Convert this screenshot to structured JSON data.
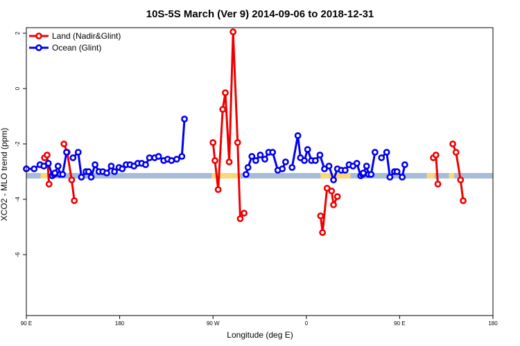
{
  "chart_data": {
    "type": "line",
    "title": "10S-5S March (Ver 9)   2014-09-06 to 2018-12-31",
    "xlabel": "Longitude (deg E)",
    "ylabel": "XCO2 - MLO trend (ppm)",
    "xlim": [
      90,
      450
    ],
    "ylim": [
      -8.2,
      2.2
    ],
    "x_ticks": [
      {
        "value": 90,
        "label": "90 E"
      },
      {
        "value": 162,
        "label": "180"
      },
      {
        "value": 234,
        "label": "90 W"
      },
      {
        "value": 306,
        "label": "0"
      },
      {
        "value": 378,
        "label": "90 E"
      },
      {
        "value": 450,
        "label": "180"
      }
    ],
    "y_ticks": [
      {
        "value": 2,
        "label": "2"
      },
      {
        "value": 0,
        "label": "0"
      },
      {
        "value": -2,
        "label": "-2"
      },
      {
        "value": -4,
        "label": "-4"
      },
      {
        "value": -6,
        "label": "-6"
      }
    ],
    "grid": false,
    "legend_position": "top-left",
    "band": {
      "y_top": -3.05,
      "y_bottom": -3.25,
      "color": "#a7bcd9",
      "highlight_color": "#fad77a",
      "highlights": [
        [
          101,
          113
        ],
        [
          233,
          255
        ],
        [
          317,
          340
        ],
        [
          399,
          405
        ],
        [
          416,
          420
        ]
      ]
    },
    "series": [
      {
        "name": "Land (Nadir&Glint)",
        "color": "#ee0000",
        "segments": [
          [
            [
              104,
              -2.5
            ],
            [
              106,
              -2.4
            ],
            [
              107.5,
              -3.45
            ]
          ],
          [
            [
              119,
              -2.0
            ],
            [
              121.5,
              -2.3
            ],
            [
              125,
              -3.3
            ],
            [
              127,
              -4.05
            ]
          ],
          [
            [
              234,
              -1.95
            ],
            [
              235.5,
              -2.6
            ],
            [
              238,
              -3.65
            ],
            [
              241.5,
              -0.75
            ],
            [
              243.5,
              -0.15
            ],
            [
              246.5,
              -2.65
            ],
            [
              249.5,
              2.05
            ],
            [
              253,
              -1.95
            ],
            [
              255,
              -4.7
            ],
            [
              258,
              -4.5
            ]
          ],
          [
            [
              317,
              -4.6
            ],
            [
              318.5,
              -5.2
            ],
            [
              322,
              -3.6
            ],
            [
              325.5,
              -3.7
            ],
            [
              327,
              -4.2
            ],
            [
              330,
              -3.9
            ]
          ],
          [
            [
              404,
              -2.5
            ],
            [
              406,
              -2.4
            ],
            [
              407.5,
              -3.45
            ]
          ],
          [
            [
              419,
              -2.0
            ],
            [
              421.5,
              -2.3
            ],
            [
              425,
              -3.3
            ],
            [
              427,
              -4.05
            ]
          ]
        ]
      },
      {
        "name": "Ocean (Glint)",
        "color": "#0000ee",
        "segments": [
          [
            [
              90,
              -2.9
            ],
            [
              96,
              -2.9
            ],
            [
              100.5,
              -2.75
            ],
            [
              103.5,
              -2.8
            ],
            [
              107,
              -2.7
            ],
            [
              110,
              -3.15
            ],
            [
              111.5,
              -3.1
            ]
          ],
          [
            [
              112,
              -3.05
            ],
            [
              114.5,
              -2.8
            ],
            [
              116,
              -3.1
            ],
            [
              118,
              -3.1
            ],
            [
              121,
              -2.3
            ]
          ],
          [
            [
              126,
              -2.5
            ],
            [
              130,
              -2.3
            ],
            [
              132.5,
              -3.2
            ],
            [
              136,
              -3.0
            ],
            [
              138,
              -3.0
            ],
            [
              140,
              -3.2
            ],
            [
              143,
              -2.75
            ],
            [
              146,
              -3.0
            ],
            [
              149,
              -3.0
            ],
            [
              152,
              -3.05
            ],
            [
              155.5,
              -2.8
            ],
            [
              158,
              -3.0
            ],
            [
              161.5,
              -2.85
            ],
            [
              164,
              -2.9
            ],
            [
              167,
              -2.75
            ],
            [
              170,
              -2.75
            ],
            [
              173,
              -2.8
            ],
            [
              176,
              -2.7
            ],
            [
              179,
              -2.7
            ],
            [
              182,
              -2.75
            ],
            [
              185,
              -2.5
            ],
            [
              189,
              -2.5
            ],
            [
              192,
              -2.45
            ],
            [
              196,
              -2.6
            ],
            [
              199,
              -2.55
            ],
            [
              202,
              -2.6
            ],
            [
              206,
              -2.55
            ],
            [
              210,
              -2.45
            ],
            [
              212,
              -1.1
            ]
          ],
          [
            [
              259.5,
              -3.1
            ],
            [
              261,
              -2.85
            ],
            [
              264,
              -2.45
            ],
            [
              267,
              -2.6
            ],
            [
              270.5,
              -2.4
            ],
            [
              274,
              -2.55
            ],
            [
              277,
              -2.3
            ],
            [
              280,
              -2.3
            ],
            [
              284,
              -2.95
            ],
            [
              287.5,
              -2.9
            ],
            [
              290,
              -2.65
            ]
          ],
          [
            [
              295,
              -2.85
            ],
            [
              299.5,
              -1.7
            ],
            [
              301.5,
              -2.5
            ],
            [
              304.5,
              -2.6
            ],
            [
              307,
              -2.2
            ],
            [
              310,
              -2.6
            ],
            [
              313,
              -2.6
            ],
            [
              316.5,
              -2.4
            ],
            [
              320,
              -2.9
            ],
            [
              323.5,
              -2.8
            ],
            [
              327,
              -3.3
            ],
            [
              330,
              -2.9
            ],
            [
              333,
              -2.95
            ],
            [
              336,
              -2.95
            ],
            [
              339,
              -2.75
            ],
            [
              342,
              -2.8
            ],
            [
              345,
              -2.7
            ],
            [
              348,
              -3.15
            ],
            [
              349.5,
              -3.1
            ]
          ],
          [
            [
              350,
              -3.05
            ],
            [
              352.5,
              -2.8
            ],
            [
              354,
              -3.1
            ],
            [
              356,
              -3.1
            ],
            [
              359,
              -2.3
            ]
          ],
          [
            [
              364,
              -2.5
            ],
            [
              368,
              -2.3
            ],
            [
              370.5,
              -3.2
            ],
            [
              374,
              -3.0
            ],
            [
              376,
              -3.0
            ],
            [
              380,
              -3.2
            ],
            [
              382,
              -2.75
            ]
          ]
        ]
      }
    ]
  }
}
